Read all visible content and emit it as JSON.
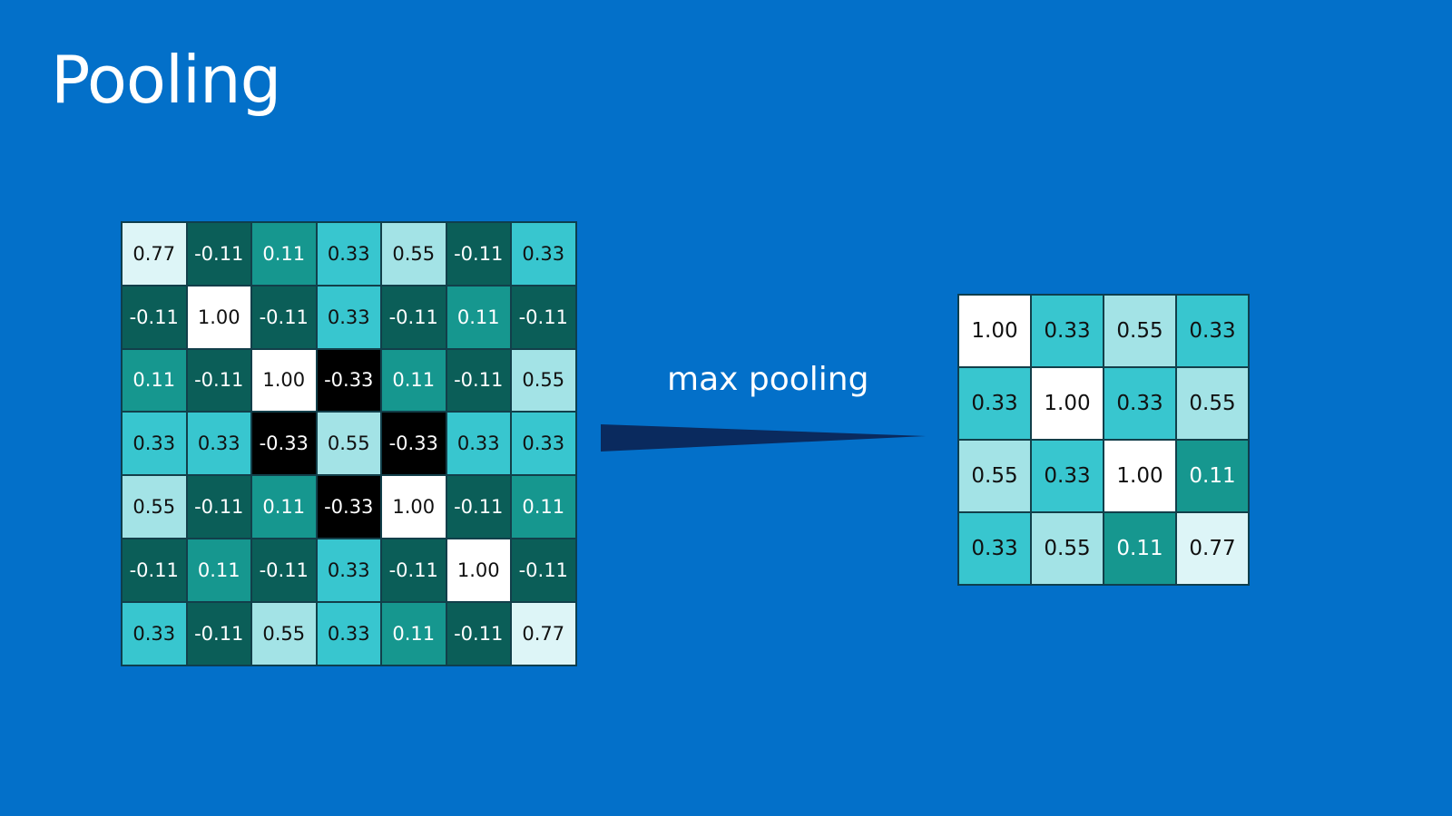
{
  "title": "Pooling",
  "operation_label": "max pooling",
  "colors": {
    "background": "#0370c9",
    "arrow": "#0a2a5e",
    "value_colors": {
      "1.00": "#ffffff",
      "0.77": "#ddf5f7",
      "0.55": "#a3e3e6",
      "0.33": "#38c6cf",
      "0.11": "#16978f",
      "-0.11": "#0b5e58",
      "-0.33": "#000000"
    },
    "value_text_colors": {
      "1.00": "#111111",
      "0.77": "#111111",
      "0.55": "#111111",
      "0.33": "#111111",
      "0.11": "#ffffff",
      "-0.11": "#ffffff",
      "-0.33": "#ffffff"
    }
  },
  "input_matrix": [
    [
      "0.77",
      "-0.11",
      "0.11",
      "0.33",
      "0.55",
      "-0.11",
      "0.33"
    ],
    [
      "-0.11",
      "1.00",
      "-0.11",
      "0.33",
      "-0.11",
      "0.11",
      "-0.11"
    ],
    [
      "0.11",
      "-0.11",
      "1.00",
      "-0.33",
      "0.11",
      "-0.11",
      "0.55"
    ],
    [
      "0.33",
      "0.33",
      "-0.33",
      "0.55",
      "-0.33",
      "0.33",
      "0.33"
    ],
    [
      "0.55",
      "-0.11",
      "0.11",
      "-0.33",
      "1.00",
      "-0.11",
      "0.11"
    ],
    [
      "-0.11",
      "0.11",
      "-0.11",
      "0.33",
      "-0.11",
      "1.00",
      "-0.11"
    ],
    [
      "0.33",
      "-0.11",
      "0.55",
      "0.33",
      "0.11",
      "-0.11",
      "0.77"
    ]
  ],
  "output_matrix": [
    [
      "1.00",
      "0.33",
      "0.55",
      "0.33"
    ],
    [
      "0.33",
      "1.00",
      "0.33",
      "0.55"
    ],
    [
      "0.55",
      "0.33",
      "1.00",
      "0.11"
    ],
    [
      "0.33",
      "0.55",
      "0.11",
      "0.77"
    ]
  ]
}
